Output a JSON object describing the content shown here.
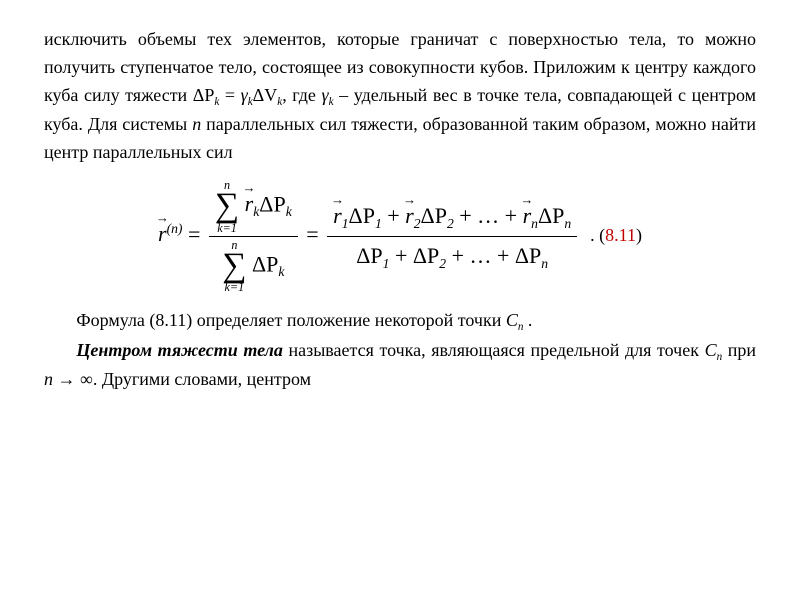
{
  "text_color": "#000000",
  "background_color": "#ffffff",
  "eq_num_color": "#c00000",
  "body_font_size_pt": 14,
  "math_font_size_pt": 16,
  "para1_a": "исключить объемы тех элементов, которые граничат с поверхностью тела, то можно получить ступенчатое тело, состоящее из совокупности кубов. Приложим к центру каждого куба силу тяжести ",
  "deltaP": "ΔP",
  "k": "k",
  "eq_mid": " = ",
  "gamma": "γ",
  "deltaV": "ΔV",
  "para1_b": ", где ",
  "para1_c": " – удельный вес в точке тела, совпадающей с центром куба. Для системы ",
  "n": "n",
  "para1_d": " параллельных сил тяжести, образованной таким образом, можно найти центр параллельных сил",
  "eq811": {
    "r": "r",
    "sup_n": "(n)",
    "eq": " = ",
    "sum_top": "n",
    "sum_bottom": "k=1",
    "rk": "r",
    "dPk": "ΔP",
    "r1dP1": "ΔP",
    "one": "1",
    "two": "2",
    "plus": " + ",
    "dots": " + … + ",
    "number": "8.11"
  },
  "para2_a": "Формула (8.11) определяет положение некоторой точки ",
  "Cn": "C",
  "period": " .",
  "para3_lead": "Центром тяжести тела",
  "para3_a": " называется точка, являющаяся предельной для точек ",
  "para3_b": " при ",
  "to_inf": " → ∞",
  "para3_c": ". Другими словами, центром"
}
